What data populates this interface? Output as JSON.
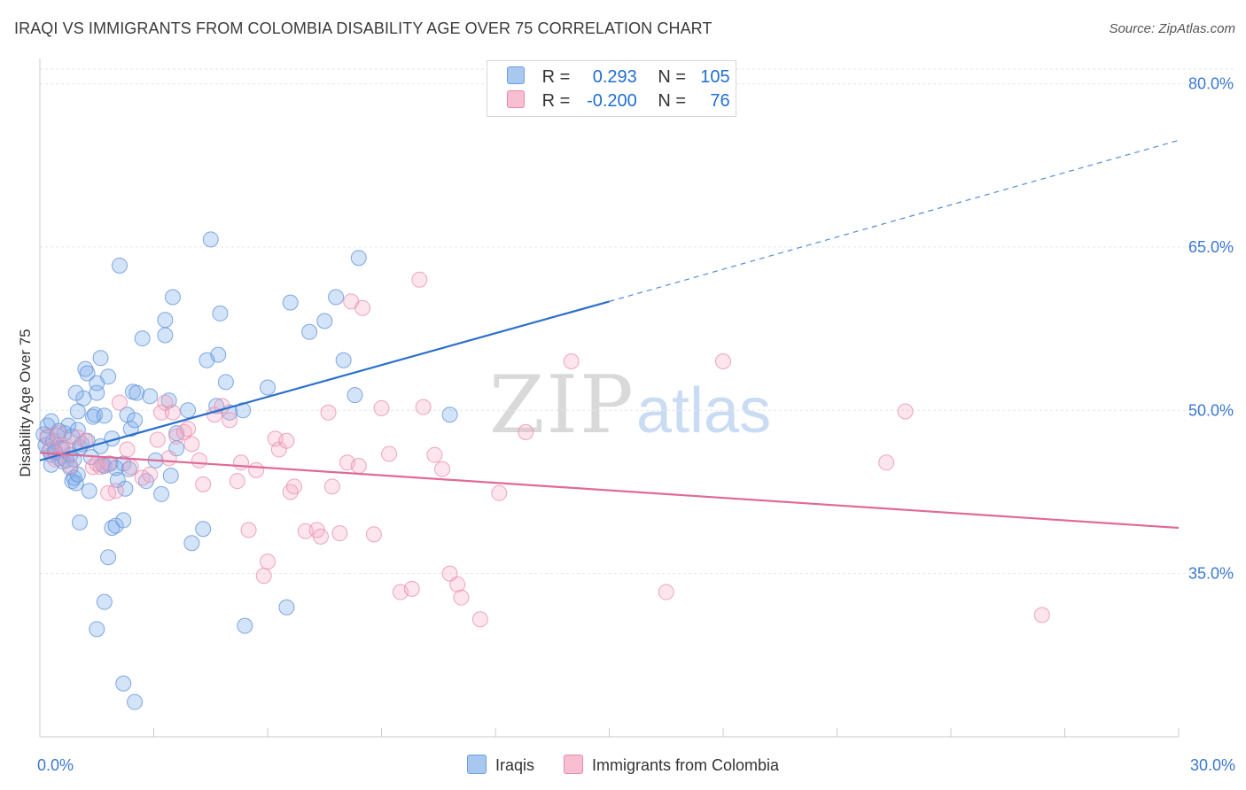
{
  "title": "IRAQI VS IMMIGRANTS FROM COLOMBIA DISABILITY AGE OVER 75 CORRELATION CHART",
  "source": "Source: ZipAtlas.com",
  "watermark": {
    "zip": "ZIP",
    "atlas": "atlas"
  },
  "legend": {
    "rows": [
      {
        "r_label": "R =",
        "r_value": "0.293",
        "n_label": "N =",
        "n_value": "105",
        "color": "#a8c8f0",
        "border": "#6a9ee0"
      },
      {
        "r_label": "R =",
        "r_value": "-0.200",
        "n_label": "N =",
        "n_value": "76",
        "color": "#f8bfd0",
        "border": "#e888a8"
      }
    ]
  },
  "bottom_legend": [
    "Iraqis",
    "Immigrants from Colombia"
  ],
  "colors": {
    "blue": "#5b8fd8",
    "blue_fill": "rgba(130,175,235,0.35)",
    "blue_line": "#2b6fcc",
    "pink": "#e98aaa",
    "pink_fill": "rgba(245,170,195,0.30)",
    "pink_line": "#e06a96",
    "grid": "#e6e6e6",
    "axis_text": "#3b78d0"
  },
  "chart_data": {
    "type": "scatter",
    "title": "IRAQI VS IMMIGRANTS FROM COLOMBIA DISABILITY AGE OVER 75 CORRELATION CHART",
    "xlabel": "",
    "ylabel": "Disability Age Over 75",
    "xlim": [
      0,
      30
    ],
    "ylim": [
      20,
      82
    ],
    "x_ticks": [
      "0.0%",
      "30.0%"
    ],
    "y_ticks": [
      {
        "value": 80,
        "label": "80.0%"
      },
      {
        "value": 65,
        "label": "65.0%"
      },
      {
        "value": 50,
        "label": "50.0%"
      },
      {
        "value": 35,
        "label": "35.0%"
      }
    ],
    "grid": "horizontal dashed",
    "series": [
      {
        "name": "Iraqis",
        "color": "#5b8fd8",
        "r": 0.293,
        "n": 105,
        "trend": {
          "x0": 0,
          "y0": 45.4,
          "x1": 15,
          "y1": 60.0,
          "dashed_to_x": 30,
          "dashed_to_y": 74.8
        },
        "points": [
          [
            0.1,
            47.8
          ],
          [
            0.15,
            46.8
          ],
          [
            0.2,
            47.5
          ],
          [
            0.2,
            48.6
          ],
          [
            0.25,
            46.3
          ],
          [
            0.3,
            49.0
          ],
          [
            0.3,
            45.9
          ],
          [
            0.35,
            47.2
          ],
          [
            0.4,
            46.1
          ],
          [
            0.45,
            47.7
          ],
          [
            0.5,
            45.6
          ],
          [
            0.55,
            46.5
          ],
          [
            0.6,
            45.3
          ],
          [
            0.6,
            46.4
          ],
          [
            0.65,
            47.9
          ],
          [
            0.7,
            45.4
          ],
          [
            0.75,
            48.6
          ],
          [
            0.8,
            45.9
          ],
          [
            0.85,
            47.6
          ],
          [
            0.9,
            45.5
          ],
          [
            0.8,
            44.7
          ],
          [
            0.85,
            43.5
          ],
          [
            0.9,
            43.8
          ],
          [
            0.95,
            43.3
          ],
          [
            1.0,
            44.1
          ],
          [
            1.0,
            48.2
          ],
          [
            1.05,
            46.6
          ],
          [
            1.1,
            46.9
          ],
          [
            1.05,
            39.7
          ],
          [
            1.15,
            51.1
          ],
          [
            0.95,
            51.6
          ],
          [
            1.0,
            49.9
          ],
          [
            1.2,
            53.8
          ],
          [
            1.25,
            53.4
          ],
          [
            1.3,
            42.6
          ],
          [
            1.4,
            49.4
          ],
          [
            1.45,
            49.6
          ],
          [
            1.5,
            51.6
          ],
          [
            1.5,
            52.5
          ],
          [
            1.6,
            46.7
          ],
          [
            1.65,
            45.0
          ],
          [
            1.7,
            49.5
          ],
          [
            1.7,
            44.9
          ],
          [
            1.8,
            53.1
          ],
          [
            1.85,
            45.1
          ],
          [
            1.9,
            39.2
          ],
          [
            2.0,
            39.4
          ],
          [
            2.05,
            43.6
          ],
          [
            2.1,
            63.3
          ],
          [
            2.2,
            45.1
          ],
          [
            2.2,
            39.9
          ],
          [
            2.25,
            42.8
          ],
          [
            2.3,
            49.6
          ],
          [
            2.35,
            44.6
          ],
          [
            2.4,
            48.3
          ],
          [
            2.45,
            51.7
          ],
          [
            2.5,
            49.1
          ],
          [
            2.55,
            51.6
          ],
          [
            2.7,
            56.6
          ],
          [
            2.9,
            51.3
          ],
          [
            2.8,
            43.5
          ],
          [
            3.05,
            45.4
          ],
          [
            3.2,
            42.3
          ],
          [
            3.3,
            56.9
          ],
          [
            3.3,
            58.3
          ],
          [
            3.45,
            44.0
          ],
          [
            3.4,
            50.9
          ],
          [
            3.5,
            60.4
          ],
          [
            3.6,
            47.9
          ],
          [
            3.6,
            46.5
          ],
          [
            3.9,
            50.0
          ],
          [
            4.0,
            37.8
          ],
          [
            4.3,
            39.1
          ],
          [
            4.4,
            54.6
          ],
          [
            4.5,
            65.7
          ],
          [
            4.65,
            50.4
          ],
          [
            4.7,
            55.1
          ],
          [
            4.75,
            58.9
          ],
          [
            4.9,
            52.6
          ],
          [
            5.0,
            49.8
          ],
          [
            5.35,
            50.0
          ],
          [
            5.4,
            30.2
          ],
          [
            6.0,
            52.1
          ],
          [
            6.5,
            31.9
          ],
          [
            6.6,
            59.9
          ],
          [
            7.1,
            57.2
          ],
          [
            7.5,
            58.2
          ],
          [
            7.8,
            60.4
          ],
          [
            8.0,
            54.6
          ],
          [
            8.3,
            51.4
          ],
          [
            8.4,
            64.0
          ],
          [
            10.8,
            49.6
          ],
          [
            1.5,
            29.9
          ],
          [
            1.7,
            32.4
          ],
          [
            1.8,
            36.5
          ],
          [
            2.2,
            24.9
          ],
          [
            2.5,
            23.2
          ],
          [
            1.25,
            47.2
          ],
          [
            1.35,
            45.7
          ],
          [
            0.5,
            48.1
          ],
          [
            0.4,
            46.2
          ],
          [
            0.3,
            45.0
          ],
          [
            2.0,
            44.7
          ],
          [
            1.6,
            54.8
          ],
          [
            1.9,
            47.4
          ]
        ]
      },
      {
        "name": "Immigrants from Colombia",
        "color": "#e98aaa",
        "r": -0.2,
        "n": 76,
        "trend": {
          "x0": 0,
          "y0": 46.1,
          "x1": 30,
          "y1": 39.2
        },
        "points": [
          [
            0.2,
            47.6
          ],
          [
            0.3,
            46.4
          ],
          [
            0.4,
            45.5
          ],
          [
            0.5,
            47.9
          ],
          [
            0.6,
            46.8
          ],
          [
            0.7,
            46.4
          ],
          [
            0.8,
            44.9
          ],
          [
            1.0,
            47.5
          ],
          [
            1.2,
            47.2
          ],
          [
            1.4,
            44.8
          ],
          [
            1.5,
            45.1
          ],
          [
            1.6,
            44.8
          ],
          [
            1.8,
            45.1
          ],
          [
            2.0,
            42.6
          ],
          [
            2.1,
            50.7
          ],
          [
            2.3,
            46.4
          ],
          [
            2.4,
            44.8
          ],
          [
            2.7,
            43.8
          ],
          [
            2.9,
            44.1
          ],
          [
            3.1,
            47.3
          ],
          [
            3.2,
            49.8
          ],
          [
            3.3,
            50.7
          ],
          [
            3.5,
            49.8
          ],
          [
            3.6,
            47.6
          ],
          [
            3.8,
            48.0
          ],
          [
            3.9,
            48.3
          ],
          [
            4.0,
            46.9
          ],
          [
            4.2,
            45.4
          ],
          [
            4.3,
            43.2
          ],
          [
            4.6,
            49.6
          ],
          [
            4.8,
            50.4
          ],
          [
            5.0,
            49.1
          ],
          [
            5.2,
            43.5
          ],
          [
            5.3,
            45.2
          ],
          [
            5.5,
            39.0
          ],
          [
            5.7,
            44.5
          ],
          [
            5.9,
            34.8
          ],
          [
            6.0,
            36.1
          ],
          [
            6.2,
            47.4
          ],
          [
            6.3,
            46.4
          ],
          [
            6.5,
            47.2
          ],
          [
            6.6,
            42.5
          ],
          [
            6.7,
            43.0
          ],
          [
            7.0,
            38.9
          ],
          [
            7.3,
            39.0
          ],
          [
            7.4,
            38.4
          ],
          [
            7.6,
            49.8
          ],
          [
            7.7,
            43.0
          ],
          [
            7.9,
            38.7
          ],
          [
            8.1,
            45.2
          ],
          [
            8.2,
            60.0
          ],
          [
            8.4,
            44.9
          ],
          [
            8.5,
            59.4
          ],
          [
            8.8,
            38.6
          ],
          [
            9.0,
            50.2
          ],
          [
            9.2,
            46.0
          ],
          [
            9.5,
            33.3
          ],
          [
            9.8,
            33.6
          ],
          [
            10.0,
            62.0
          ],
          [
            10.1,
            50.3
          ],
          [
            10.4,
            45.9
          ],
          [
            10.6,
            44.6
          ],
          [
            10.8,
            35.0
          ],
          [
            11.0,
            34.0
          ],
          [
            11.1,
            32.8
          ],
          [
            11.6,
            30.8
          ],
          [
            12.1,
            42.4
          ],
          [
            12.8,
            48.0
          ],
          [
            14.0,
            54.5
          ],
          [
            16.5,
            33.3
          ],
          [
            18.0,
            54.5
          ],
          [
            22.3,
            45.2
          ],
          [
            22.8,
            49.9
          ],
          [
            26.4,
            31.2
          ],
          [
            1.8,
            42.4
          ],
          [
            3.4,
            45.6
          ]
        ]
      }
    ]
  }
}
